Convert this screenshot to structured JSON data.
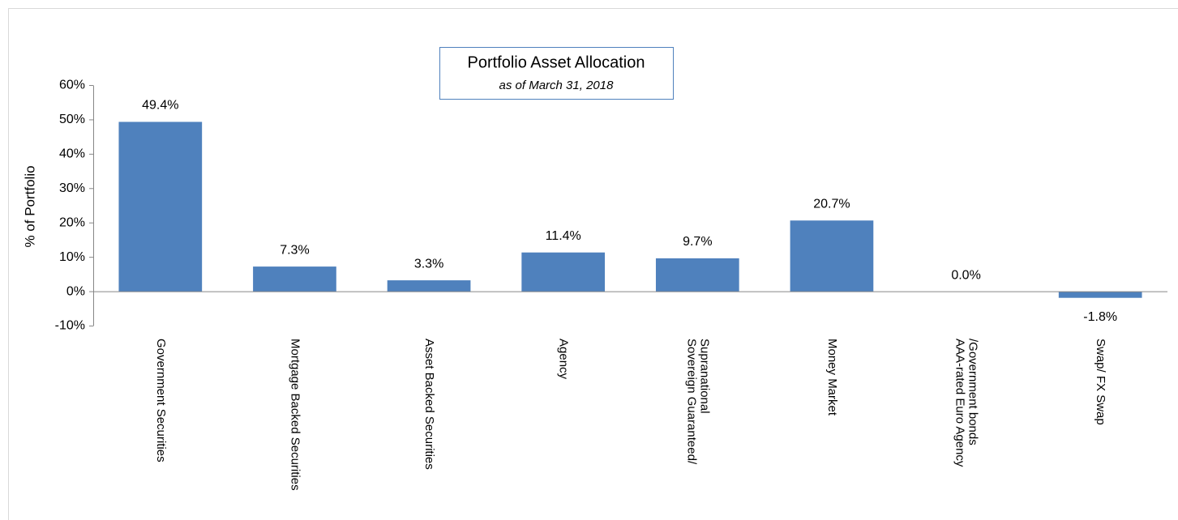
{
  "chart_data": {
    "type": "bar",
    "title": "Portfolio Asset Allocation",
    "subtitle": "as of March 31, 2018",
    "y_label": "% of Portfolio",
    "categories": [
      "Government Securities",
      "Mortgage Backed Securities",
      "Asset Backed Securities",
      "Agency",
      "Sovereign Guaranteed/\nSupranational",
      "Money Market",
      "AAA-rated Euro Agency\n/Government bonds",
      "Swap/ FX Swap"
    ],
    "values": [
      49.4,
      7.3,
      3.3,
      11.4,
      9.7,
      20.7,
      0.0,
      -1.8
    ],
    "value_labels": [
      "49.4%",
      "7.3%",
      "3.3%",
      "11.4%",
      "9.7%",
      "20.7%",
      "0.0%",
      "-1.8%"
    ],
    "color": "#4f81bd",
    "ylim": [
      -10,
      60
    ],
    "yticks": [
      {
        "value": -10,
        "label": "-10%"
      },
      {
        "value": 0,
        "label": "0%"
      },
      {
        "value": 10,
        "label": "10%"
      },
      {
        "value": 20,
        "label": "20%"
      },
      {
        "value": 30,
        "label": "30%"
      },
      {
        "value": 40,
        "label": "40%"
      },
      {
        "value": 50,
        "label": "50%"
      },
      {
        "value": 60,
        "label": "60%"
      }
    ],
    "grid": false
  }
}
